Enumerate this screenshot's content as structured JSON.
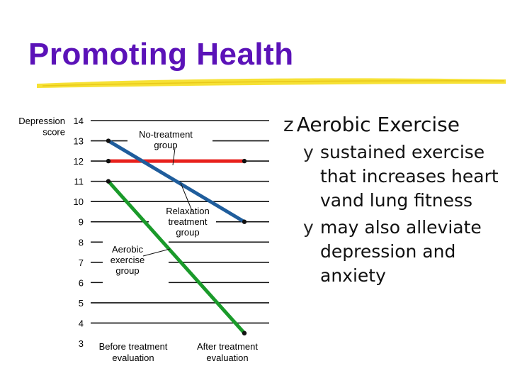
{
  "slide": {
    "title": "Promoting Health",
    "accent_color": "#5b12b8",
    "rule_color": "#f5df2a"
  },
  "bullets": {
    "main_glyph": "z",
    "main": "Aerobic Exercise",
    "sub_glyph": "y",
    "subs": [
      "sustained exercise that increases heart vand lung fitness",
      "may also alleviate depression and anxiety"
    ]
  },
  "chart_data": {
    "type": "line",
    "ylabel_line1": "Depression",
    "ylabel_line2": "score",
    "ylim": [
      3,
      14
    ],
    "yticks": [
      3,
      4,
      5,
      6,
      7,
      8,
      9,
      10,
      11,
      12,
      13,
      14
    ],
    "categories": [
      "Before treatment evaluation",
      "After treatment evaluation"
    ],
    "category_lines": [
      [
        "Before treatment",
        "evaluation"
      ],
      [
        "After treatment",
        "evaluation"
      ]
    ],
    "series": [
      {
        "name": "No-treatment group",
        "label_lines": [
          "No-treatment",
          "group"
        ],
        "values": [
          12,
          12
        ],
        "color": "#e8201c"
      },
      {
        "name": "Relaxation treatment group",
        "label_lines": [
          "Relaxation",
          "treatment",
          "group"
        ],
        "values": [
          13,
          9
        ],
        "color": "#1f5d9c"
      },
      {
        "name": "Aerobic exercise group",
        "label_lines": [
          "Aerobic",
          "exercise",
          "group"
        ],
        "values": [
          11,
          3.5
        ],
        "color": "#1a9a2a"
      }
    ],
    "grid": true,
    "legend": "inline labels"
  }
}
